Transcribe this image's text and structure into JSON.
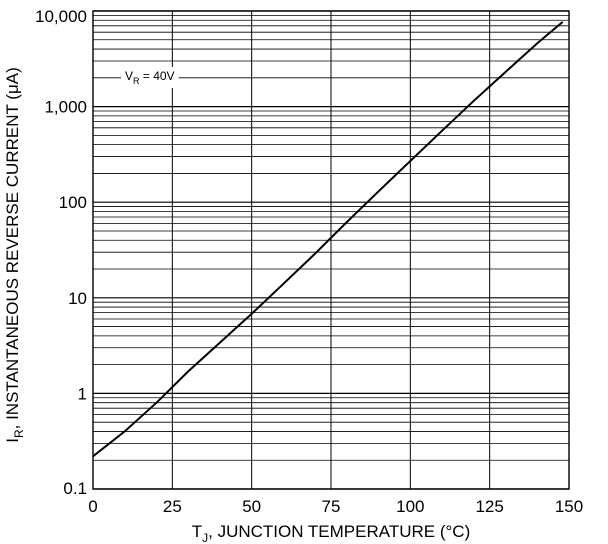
{
  "chart_data": {
    "type": "line",
    "title": "",
    "xlabel": {
      "main": "T",
      "sub": "J",
      "rest": ", JUNCTION TEMPERATURE (°C)"
    },
    "ylabel": {
      "main": "I",
      "sub": "R",
      "rest": ", INSTANTANEOUS REVERSE CURRENT (μA)"
    },
    "x_scale": "linear",
    "y_scale": "log",
    "xlim": [
      0,
      150
    ],
    "ylim": [
      0.1,
      10000
    ],
    "x_ticks": [
      0,
      25,
      50,
      75,
      100,
      125,
      150
    ],
    "x_tick_labels": [
      "0",
      "25",
      "50",
      "75",
      "100",
      "125",
      "150"
    ],
    "y_ticks": [
      0.1,
      1,
      10,
      100,
      1000,
      10000
    ],
    "y_tick_labels": [
      "0.1",
      "1",
      "10",
      "100",
      "1,000",
      "10,000"
    ],
    "grid": true,
    "annotation": {
      "main": "V",
      "sub": "R",
      "rest": " = 40V"
    },
    "series": [
      {
        "x": [
          0,
          10,
          20,
          30,
          40,
          50,
          60,
          70,
          80,
          90,
          100,
          110,
          120,
          130,
          140,
          148
        ],
        "y": [
          0.22,
          0.4,
          0.8,
          1.7,
          3.4,
          6.8,
          14,
          29,
          62,
          130,
          270,
          560,
          1150,
          2300,
          4600,
          7700
        ]
      }
    ]
  }
}
